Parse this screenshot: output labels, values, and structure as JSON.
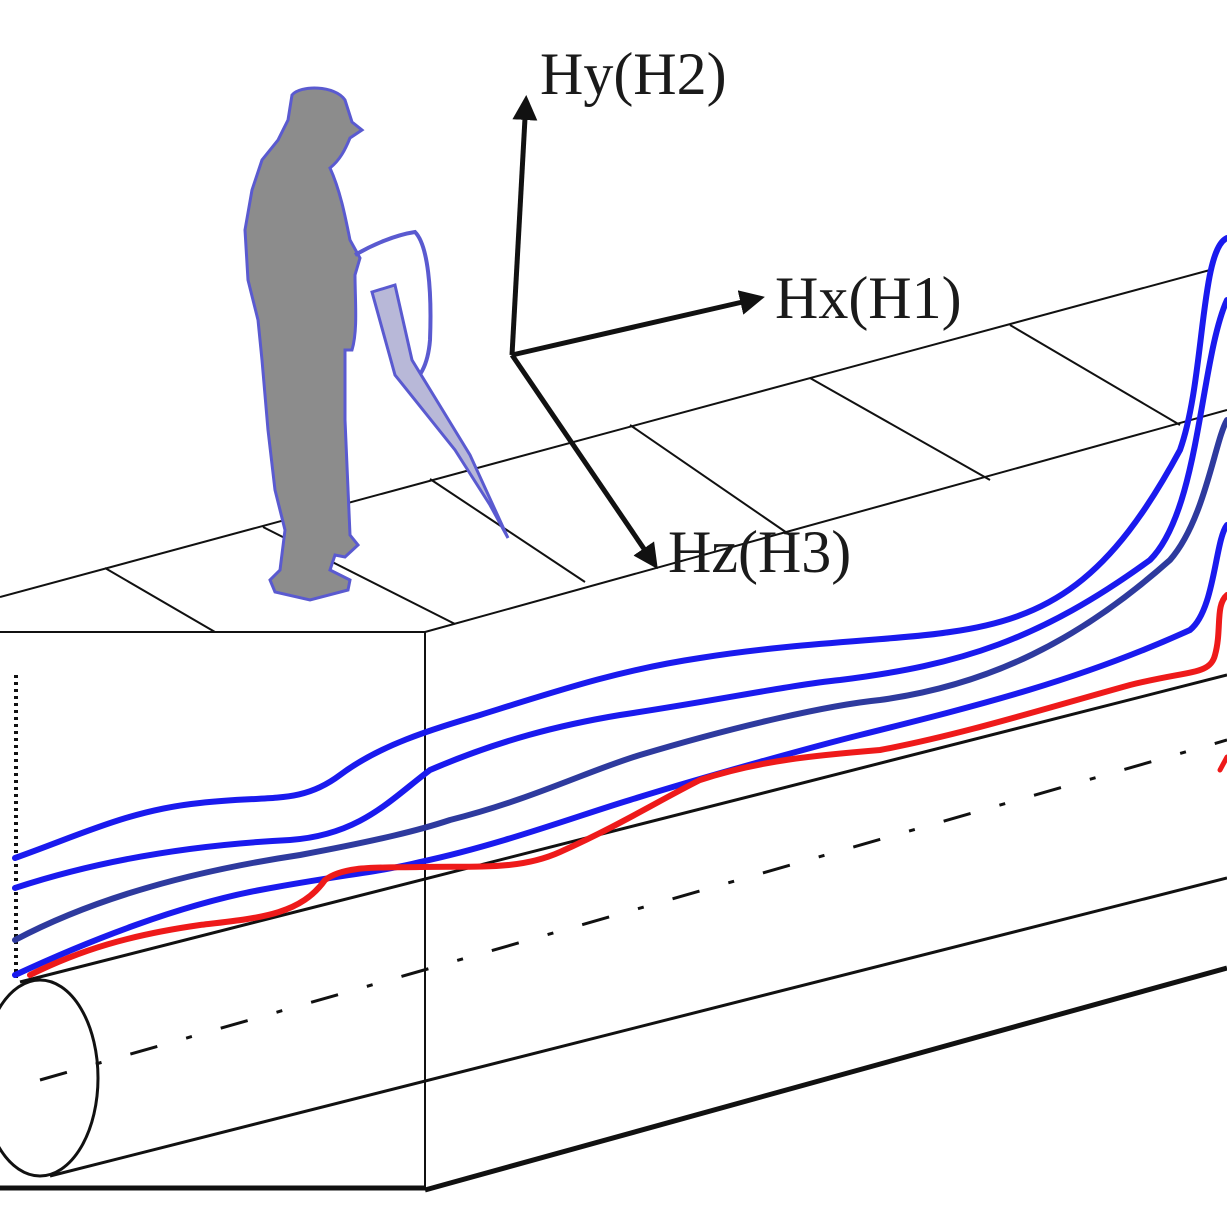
{
  "axes": {
    "hy_label": "Hy(H2)",
    "hx_label": "Hx(H1)",
    "hz_label": "Hz(H3)"
  },
  "colors": {
    "signal_blue": "#1a1aee",
    "signal_navy": "#2e3a9e",
    "signal_red": "#ee1a1a",
    "operator_fill": "#8c8c8c",
    "operator_outline": "#5a5ad0",
    "line": "#111111"
  },
  "icons": {
    "operator": "person-with-detector-icon",
    "pipe": "buried-pipeline-icon"
  }
}
